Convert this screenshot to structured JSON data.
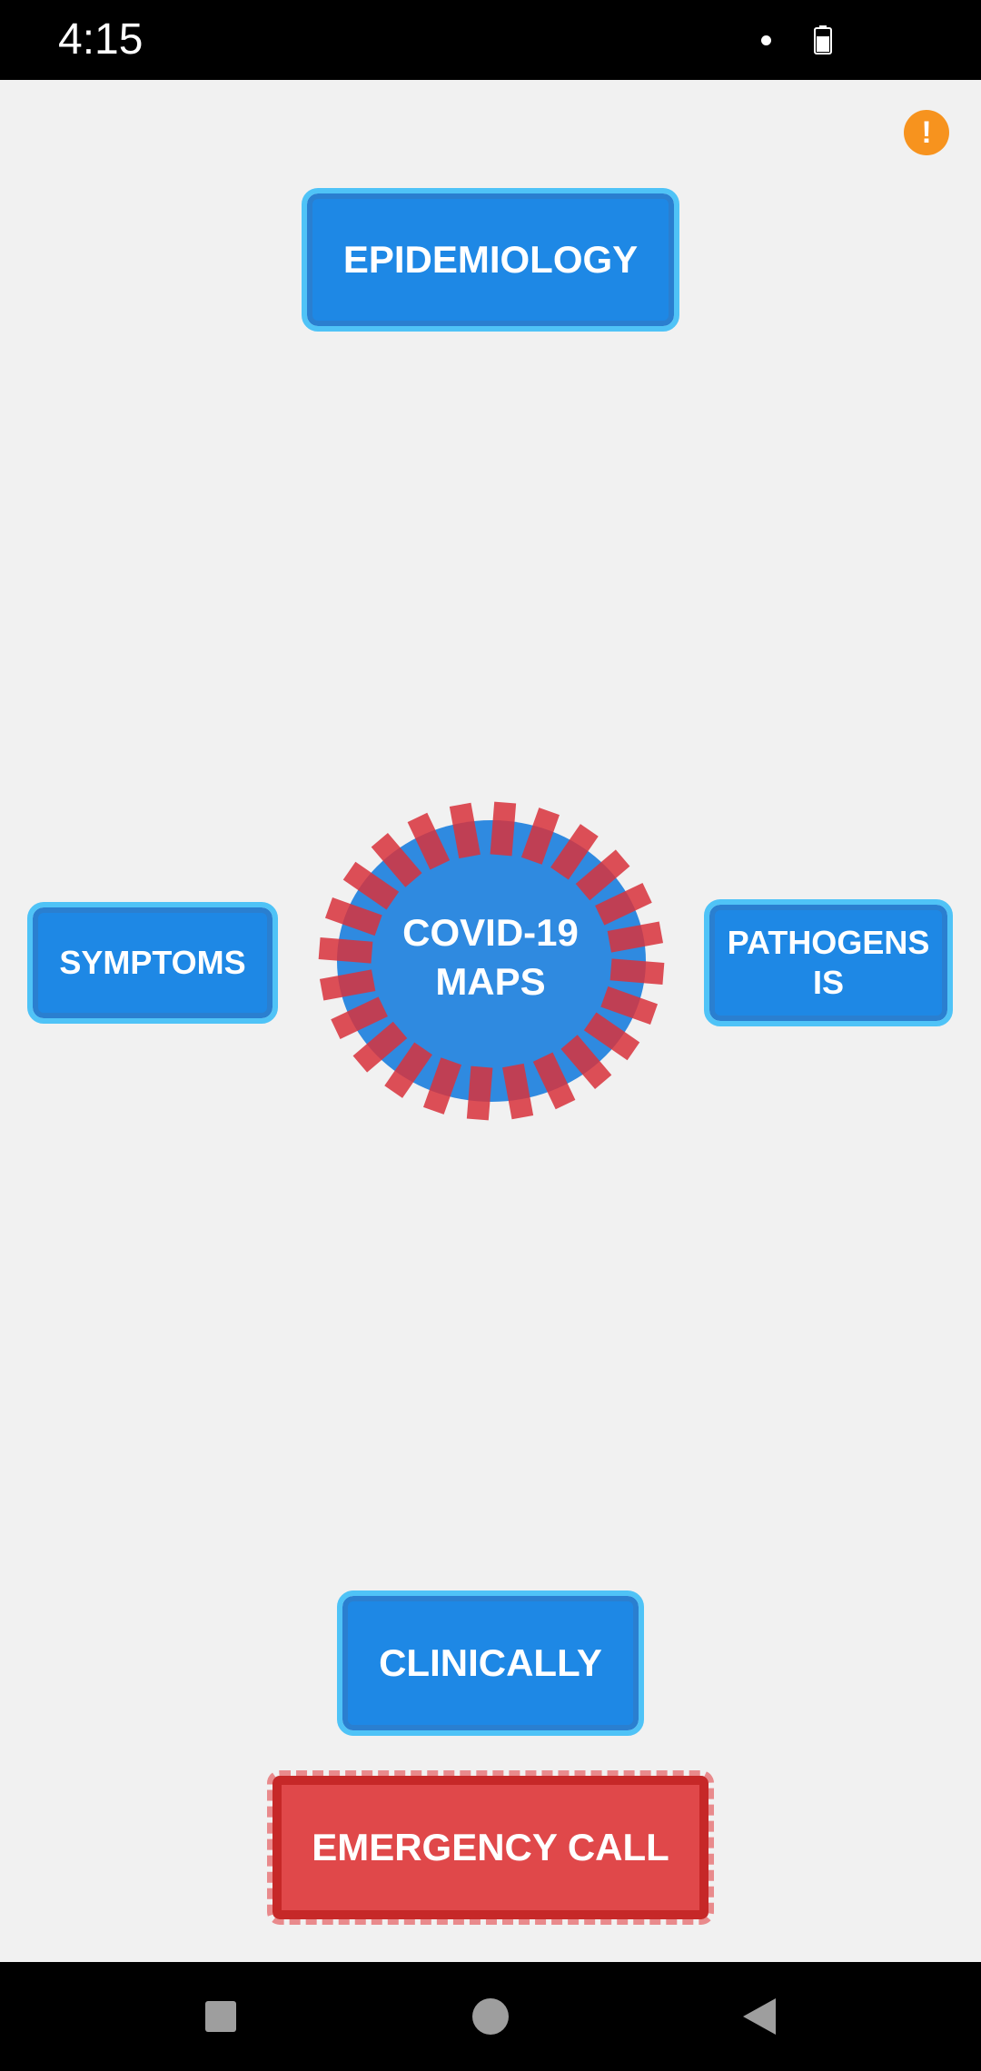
{
  "status_bar": {
    "time": "4:15"
  },
  "alert": {
    "symbol": "!",
    "color": "#f7931e"
  },
  "buttons": {
    "epidemiology": "EPIDEMIOLOGY",
    "symptoms": "SYMPTOMS",
    "pathogenesis_line1": "PATHOGENS",
    "pathogenesis_line2": "IS",
    "clinically": "CLINICALLY",
    "emergency": "EMERGENCY CALL"
  },
  "center": {
    "line1": "COVID-19",
    "line2": "MAPS"
  },
  "colors": {
    "primary_blue": "#1e88e5",
    "light_blue_outline": "#4fc3f7",
    "virus_body": "#2f8ae0",
    "virus_spikes": "#d8313b",
    "emergency_red": "#e0484a"
  },
  "icons": {
    "status_dot": "notification-dot-icon",
    "battery": "battery-icon",
    "alert": "alert-icon",
    "nav_recents": "square-recents-icon",
    "nav_home": "circle-home-icon",
    "nav_back": "triangle-back-icon",
    "virus": "virus-icon"
  }
}
